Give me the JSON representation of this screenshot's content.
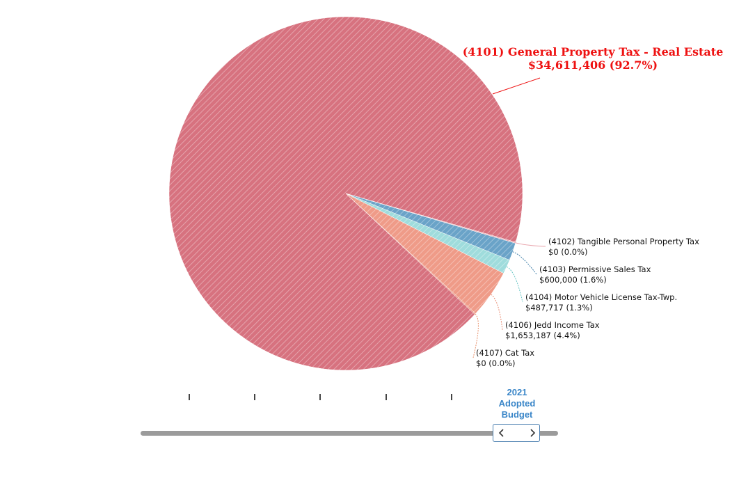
{
  "chart_data": {
    "type": "pie",
    "slices": [
      {
        "code": "(4101)",
        "label": "(4101) General Property Tax - Real Estate",
        "value": 34611406,
        "display": "$34,611,406 (92.7%)",
        "percent": 92.7,
        "color": "#d7727f",
        "highlight": true
      },
      {
        "code": "(4102)",
        "label": "(4102) Tangible Personal Property Tax",
        "value": 0,
        "display": "$0 (0.0%)",
        "percent": 0.0,
        "color": "#e8a0a8"
      },
      {
        "code": "(4103)",
        "label": "(4103) Permissive Sales Tax",
        "value": 600000,
        "display": "$600,000 (1.6%)",
        "percent": 1.6,
        "color": "#6aa3c8"
      },
      {
        "code": "(4104)",
        "label": "(4104) Motor Vehicle License Tax-Twp.",
        "value": 487717,
        "display": "$487,717 (1.3%)",
        "percent": 1.3,
        "color": "#9fdcdc"
      },
      {
        "code": "(4106)",
        "label": "(4106) Jedd Income Tax",
        "value": 1653187,
        "display": "$1,653,187 (4.4%)",
        "percent": 4.4,
        "color": "#ef9b88"
      },
      {
        "code": "(4107)",
        "label": "(4107) Cat Tax",
        "value": 0,
        "display": "$0 (0.0%)",
        "percent": 0.0,
        "color": "#e8907a"
      }
    ]
  },
  "slider": {
    "year_line1": "2021",
    "year_line2": "Adopted",
    "year_line3": "Budget",
    "tick_count": 5,
    "prev_icon": "chevron-left-icon",
    "next_icon": "chevron-right-icon"
  }
}
